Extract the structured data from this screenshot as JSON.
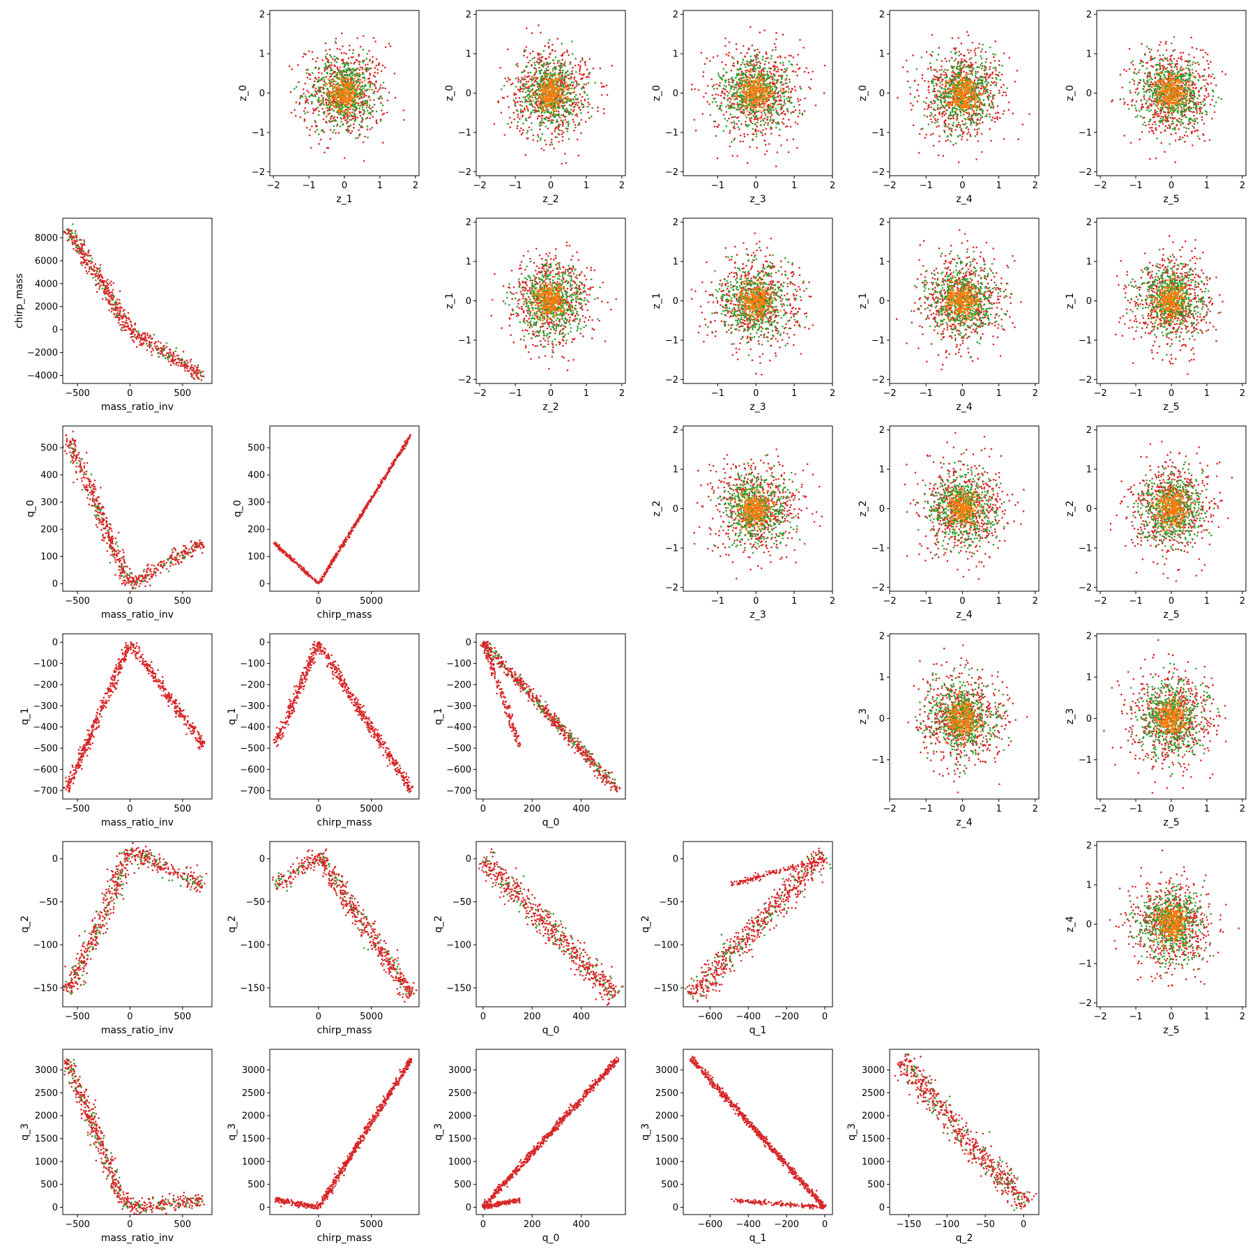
{
  "figure": {
    "colors": {
      "outer": "#d62728",
      "middle": "#2ca02c",
      "inner": "#ff7f0e"
    }
  },
  "chart_data": [
    {
      "type": "scatter",
      "cell": [
        0,
        1
      ],
      "xlabel": "z_1",
      "ylabel": "z_0",
      "xlim": [
        -2.1,
        2.1
      ],
      "ylim": [
        -2.1,
        2.1
      ],
      "xticks": [
        -2,
        -1,
        0,
        1,
        2
      ],
      "yticks": [
        -2,
        -1,
        0,
        1,
        2
      ],
      "kind": "blob",
      "spread": [
        0.9,
        0.9
      ]
    },
    {
      "type": "scatter",
      "cell": [
        0,
        2
      ],
      "xlabel": "z_2",
      "ylabel": "z_0",
      "xlim": [
        -2.1,
        2.1
      ],
      "ylim": [
        -2.1,
        2.1
      ],
      "xticks": [
        -2,
        -1,
        0,
        1,
        2
      ],
      "yticks": [
        -2,
        -1,
        0,
        1,
        2
      ],
      "kind": "blob",
      "spread": [
        0.9,
        0.9
      ]
    },
    {
      "type": "scatter",
      "cell": [
        0,
        3
      ],
      "xlabel": "z_3",
      "ylabel": "z_0",
      "xlim": [
        -1.9,
        2.0
      ],
      "ylim": [
        -2.1,
        2.1
      ],
      "xticks": [
        -1,
        0,
        1,
        2
      ],
      "yticks": [
        -2,
        -1,
        0,
        1,
        2
      ],
      "kind": "blob",
      "spread": [
        0.9,
        0.9
      ]
    },
    {
      "type": "scatter",
      "cell": [
        0,
        4
      ],
      "xlabel": "z_4",
      "ylabel": "z_0",
      "xlim": [
        -2.0,
        2.1
      ],
      "ylim": [
        -2.1,
        2.1
      ],
      "xticks": [
        -2,
        -1,
        0,
        1,
        2
      ],
      "yticks": [
        -2,
        -1,
        0,
        1,
        2
      ],
      "kind": "blob",
      "spread": [
        0.9,
        0.9
      ]
    },
    {
      "type": "scatter",
      "cell": [
        0,
        5
      ],
      "xlabel": "z_5",
      "ylabel": "z_0",
      "xlim": [
        -2.1,
        2.1
      ],
      "ylim": [
        -2.1,
        2.1
      ],
      "xticks": [
        -2,
        -1,
        0,
        1,
        2
      ],
      "yticks": [
        -2,
        -1,
        0,
        1,
        2
      ],
      "kind": "blob",
      "spread": [
        0.9,
        0.9
      ]
    },
    {
      "type": "scatter",
      "cell": [
        1,
        0
      ],
      "xlabel": "mass_ratio_inv",
      "ylabel": "chirp_mass",
      "xlim": [
        -640,
        780
      ],
      "ylim": [
        -4700,
        9700
      ],
      "xticks": [
        -500,
        0,
        500
      ],
      "yticks": [
        -4000,
        -2000,
        0,
        2000,
        4000,
        6000,
        8000
      ],
      "kind": "vee",
      "branches": [
        [
          [
            -600,
            8800
          ],
          [
            -420,
            6200
          ],
          [
            -250,
            3800
          ],
          [
            -120,
            1600
          ],
          [
            0,
            0
          ],
          [
            700,
            -4100
          ]
        ]
      ],
      "thick": [
        0.05,
        0.02
      ]
    },
    {
      "type": "scatter",
      "cell": [
        1,
        2
      ],
      "xlabel": "z_2",
      "ylabel": "z_1",
      "xlim": [
        -2.1,
        2.1
      ],
      "ylim": [
        -2.1,
        2.1
      ],
      "xticks": [
        -2,
        -1,
        0,
        1,
        2
      ],
      "yticks": [
        -2,
        -1,
        0,
        1,
        2
      ],
      "kind": "blob",
      "spread": [
        0.9,
        0.9
      ]
    },
    {
      "type": "scatter",
      "cell": [
        1,
        3
      ],
      "xlabel": "z_3",
      "ylabel": "z_1",
      "xlim": [
        -1.9,
        2.0
      ],
      "ylim": [
        -2.1,
        2.1
      ],
      "xticks": [
        -1,
        0,
        1,
        2
      ],
      "yticks": [
        -2,
        -1,
        0,
        1,
        2
      ],
      "kind": "blob",
      "spread": [
        0.9,
        0.9
      ]
    },
    {
      "type": "scatter",
      "cell": [
        1,
        4
      ],
      "xlabel": "z_4",
      "ylabel": "z_1",
      "xlim": [
        -2.0,
        2.1
      ],
      "ylim": [
        -2.1,
        2.1
      ],
      "xticks": [
        -2,
        -1,
        0,
        1,
        2
      ],
      "yticks": [
        -2,
        -1,
        0,
        1,
        2
      ],
      "kind": "blob",
      "spread": [
        0.9,
        0.9
      ]
    },
    {
      "type": "scatter",
      "cell": [
        1,
        5
      ],
      "xlabel": "z_5",
      "ylabel": "z_1",
      "xlim": [
        -2.1,
        2.1
      ],
      "ylim": [
        -2.1,
        2.1
      ],
      "xticks": [
        -2,
        -1,
        0,
        1,
        2
      ],
      "yticks": [
        -2,
        -1,
        0,
        1,
        2
      ],
      "kind": "blob",
      "spread": [
        0.9,
        0.9
      ]
    },
    {
      "type": "scatter",
      "cell": [
        2,
        0
      ],
      "xlabel": "mass_ratio_inv",
      "ylabel": "q_0",
      "xlim": [
        -640,
        780
      ],
      "ylim": [
        -28,
        580
      ],
      "xticks": [
        -500,
        0,
        500
      ],
      "yticks": [
        0,
        100,
        200,
        300,
        400,
        500
      ],
      "kind": "vee",
      "branches": [
        [
          [
            -600,
            550
          ],
          [
            -300,
            280
          ],
          [
            -150,
            120
          ],
          [
            0,
            0
          ],
          [
            700,
            150
          ]
        ]
      ],
      "thick": [
        0.05,
        0.03
      ]
    },
    {
      "type": "scatter",
      "cell": [
        2,
        1
      ],
      "xlabel": "chirp_mass",
      "ylabel": "q_0",
      "xlim": [
        -4600,
        9500
      ],
      "ylim": [
        -28,
        580
      ],
      "xticks": [
        0,
        5000
      ],
      "yticks": [
        0,
        100,
        200,
        300,
        400,
        500
      ],
      "kind": "vee",
      "branches": [
        [
          [
            -4200,
            150
          ],
          [
            0,
            0
          ],
          [
            8800,
            550
          ]
        ]
      ],
      "thick": [
        0.01,
        0.01
      ]
    },
    {
      "type": "scatter",
      "cell": [
        2,
        3
      ],
      "xlabel": "z_3",
      "ylabel": "z_2",
      "xlim": [
        -1.9,
        2.0
      ],
      "ylim": [
        -2.1,
        2.1
      ],
      "xticks": [
        -1,
        0,
        1,
        2
      ],
      "yticks": [
        -2,
        -1,
        0,
        1,
        2
      ],
      "kind": "blob",
      "spread": [
        0.9,
        0.9
      ]
    },
    {
      "type": "scatter",
      "cell": [
        2,
        4
      ],
      "xlabel": "z_4",
      "ylabel": "z_2",
      "xlim": [
        -2.0,
        2.1
      ],
      "ylim": [
        -2.1,
        2.1
      ],
      "xticks": [
        -2,
        -1,
        0,
        1,
        2
      ],
      "yticks": [
        -2,
        -1,
        0,
        1,
        2
      ],
      "kind": "blob",
      "spread": [
        0.9,
        0.9
      ]
    },
    {
      "type": "scatter",
      "cell": [
        2,
        5
      ],
      "xlabel": "z_5",
      "ylabel": "z_2",
      "xlim": [
        -2.1,
        2.1
      ],
      "ylim": [
        -2.1,
        2.1
      ],
      "xticks": [
        -2,
        -1,
        0,
        1,
        2
      ],
      "yticks": [
        -2,
        -1,
        0,
        1,
        2
      ],
      "kind": "blob",
      "spread": [
        0.9,
        0.9
      ]
    },
    {
      "type": "scatter",
      "cell": [
        3,
        0
      ],
      "xlabel": "mass_ratio_inv",
      "ylabel": "q_1",
      "xlim": [
        -640,
        780
      ],
      "ylim": [
        -740,
        40
      ],
      "xticks": [
        -500,
        0,
        500
      ],
      "yticks": [
        -700,
        -600,
        -500,
        -400,
        -300,
        -200,
        -100,
        0
      ],
      "kind": "vee",
      "branches": [
        [
          [
            -600,
            -700
          ],
          [
            -300,
            -350
          ],
          [
            0,
            0
          ],
          [
            700,
            -490
          ]
        ]
      ],
      "thick": [
        0.03,
        0.02
      ]
    },
    {
      "type": "scatter",
      "cell": [
        3,
        1
      ],
      "xlabel": "chirp_mass",
      "ylabel": "q_1",
      "xlim": [
        -4600,
        9500
      ],
      "ylim": [
        -740,
        40
      ],
      "xticks": [
        0,
        5000
      ],
      "yticks": [
        -700,
        -600,
        -500,
        -400,
        -300,
        -200,
        -100,
        0
      ],
      "kind": "vee",
      "branches": [
        [
          [
            -4100,
            -490
          ],
          [
            0,
            0
          ],
          [
            4000,
            -330
          ],
          [
            8800,
            -700
          ]
        ]
      ],
      "thick": [
        0.03,
        0.02
      ]
    },
    {
      "type": "scatter",
      "cell": [
        3,
        2
      ],
      "xlabel": "q_0",
      "ylabel": "q_1",
      "xlim": [
        -28,
        580
      ],
      "ylim": [
        -740,
        40
      ],
      "xticks": [
        0,
        200,
        400
      ],
      "yticks": [
        -700,
        -600,
        -500,
        -400,
        -300,
        -200,
        -100,
        0
      ],
      "kind": "vee",
      "branches": [
        [
          [
            0,
            0
          ],
          [
            550,
            -700
          ]
        ],
        [
          [
            0,
            0
          ],
          [
            150,
            -490
          ]
        ]
      ],
      "thick": [
        0.035,
        0.02
      ]
    },
    {
      "type": "scatter",
      "cell": [
        3,
        4
      ],
      "xlabel": "z_4",
      "ylabel": "z_3",
      "xlim": [
        -2.0,
        2.1
      ],
      "ylim": [
        -1.95,
        2.05
      ],
      "xticks": [
        -2,
        -1,
        0,
        1,
        2
      ],
      "yticks": [
        -1,
        0,
        1,
        2
      ],
      "kind": "blob",
      "spread": [
        0.9,
        0.9
      ]
    },
    {
      "type": "scatter",
      "cell": [
        3,
        5
      ],
      "xlabel": "z_5",
      "ylabel": "z_3",
      "xlim": [
        -2.1,
        2.1
      ],
      "ylim": [
        -1.95,
        2.05
      ],
      "xticks": [
        -2,
        -1,
        0,
        1,
        2
      ],
      "yticks": [
        -1,
        0,
        1,
        2
      ],
      "kind": "blob",
      "spread": [
        0.9,
        0.9
      ]
    },
    {
      "type": "scatter",
      "cell": [
        4,
        0
      ],
      "xlabel": "mass_ratio_inv",
      "ylabel": "q_2",
      "xlim": [
        -640,
        780
      ],
      "ylim": [
        -172,
        20
      ],
      "xticks": [
        -500,
        0,
        500
      ],
      "yticks": [
        -150,
        -100,
        -50,
        0
      ],
      "kind": "vee",
      "branches": [
        [
          [
            -600,
            -155
          ],
          [
            -300,
            -80
          ],
          [
            0,
            10
          ],
          [
            700,
            -32
          ]
        ]
      ],
      "thick": [
        0.06,
        0.03
      ]
    },
    {
      "type": "scatter",
      "cell": [
        4,
        1
      ],
      "xlabel": "chirp_mass",
      "ylabel": "q_2",
      "xlim": [
        -4600,
        9500
      ],
      "ylim": [
        -172,
        20
      ],
      "xticks": [
        0,
        5000
      ],
      "yticks": [
        -150,
        -100,
        -50,
        0
      ],
      "kind": "vee",
      "branches": [
        [
          [
            -4100,
            -32
          ],
          [
            0,
            5
          ],
          [
            4500,
            -80
          ],
          [
            8800,
            -160
          ]
        ]
      ],
      "thick": [
        0.06,
        0.03
      ]
    },
    {
      "type": "scatter",
      "cell": [
        4,
        2
      ],
      "xlabel": "q_0",
      "ylabel": "q_2",
      "xlim": [
        -28,
        580
      ],
      "ylim": [
        -172,
        20
      ],
      "xticks": [
        0,
        200,
        400
      ],
      "yticks": [
        -150,
        -100,
        -50,
        0
      ],
      "kind": "vee",
      "branches": [
        [
          [
            0,
            0
          ],
          [
            540,
            -160
          ]
        ]
      ],
      "thick": [
        0.08,
        0.08
      ]
    },
    {
      "type": "scatter",
      "cell": [
        4,
        3
      ],
      "xlabel": "q_1",
      "ylabel": "q_2",
      "xlim": [
        -740,
        40
      ],
      "ylim": [
        -172,
        20
      ],
      "xticks": [
        -600,
        -400,
        -200,
        0
      ],
      "yticks": [
        -150,
        -100,
        -50,
        0
      ],
      "kind": "vee",
      "branches": [
        [
          [
            -700,
            -160
          ],
          [
            0,
            5
          ]
        ],
        [
          [
            -490,
            -30
          ],
          [
            0,
            0
          ]
        ]
      ],
      "thick": [
        0.08,
        0.02
      ]
    },
    {
      "type": "scatter",
      "cell": [
        4,
        5
      ],
      "xlabel": "z_5",
      "ylabel": "z_4",
      "xlim": [
        -2.1,
        2.1
      ],
      "ylim": [
        -2.1,
        2.1
      ],
      "xticks": [
        -2,
        -1,
        0,
        1,
        2
      ],
      "yticks": [
        -2,
        -1,
        0,
        1,
        2
      ],
      "kind": "blob",
      "spread": [
        0.9,
        0.9
      ]
    },
    {
      "type": "scatter",
      "cell": [
        5,
        0
      ],
      "xlabel": "mass_ratio_inv",
      "ylabel": "q_3",
      "xlim": [
        -640,
        780
      ],
      "ylim": [
        -160,
        3450
      ],
      "xticks": [
        -500,
        0,
        500
      ],
      "yticks": [
        0,
        500,
        1000,
        1500,
        2000,
        2500,
        3000
      ],
      "kind": "vee",
      "branches": [
        [
          [
            -600,
            3250
          ],
          [
            -300,
            1500
          ],
          [
            -100,
            300
          ],
          [
            0,
            0
          ],
          [
            700,
            160
          ]
        ]
      ],
      "thick": [
        0.05,
        0.02
      ]
    },
    {
      "type": "scatter",
      "cell": [
        5,
        1
      ],
      "xlabel": "chirp_mass",
      "ylabel": "q_3",
      "xlim": [
        -4600,
        9500
      ],
      "ylim": [
        -160,
        3450
      ],
      "xticks": [
        0,
        5000
      ],
      "yticks": [
        0,
        500,
        1000,
        1500,
        2000,
        2500,
        3000
      ],
      "kind": "vee",
      "branches": [
        [
          [
            -4100,
            160
          ],
          [
            0,
            0
          ],
          [
            8800,
            3250
          ]
        ]
      ],
      "thick": [
        0.02,
        0.015
      ]
    },
    {
      "type": "scatter",
      "cell": [
        5,
        2
      ],
      "xlabel": "q_0",
      "ylabel": "q_3",
      "xlim": [
        -28,
        580
      ],
      "ylim": [
        -160,
        3450
      ],
      "xticks": [
        0,
        200,
        400
      ],
      "yticks": [
        0,
        500,
        1000,
        1500,
        2000,
        2500,
        3000
      ],
      "kind": "vee",
      "branches": [
        [
          [
            0,
            0
          ],
          [
            550,
            3250
          ]
        ],
        [
          [
            0,
            0
          ],
          [
            150,
            160
          ]
        ]
      ],
      "thick": [
        0.02,
        0.015
      ]
    },
    {
      "type": "scatter",
      "cell": [
        5,
        3
      ],
      "xlabel": "q_1",
      "ylabel": "q_3",
      "xlim": [
        -740,
        40
      ],
      "ylim": [
        -160,
        3450
      ],
      "xticks": [
        -600,
        -400,
        -200,
        0
      ],
      "yticks": [
        0,
        500,
        1000,
        1500,
        2000,
        2500,
        3000
      ],
      "kind": "vee",
      "branches": [
        [
          [
            -700,
            3250
          ],
          [
            0,
            0
          ]
        ],
        [
          [
            -490,
            160
          ],
          [
            0,
            0
          ]
        ]
      ],
      "thick": [
        0.02,
        0.015
      ]
    },
    {
      "type": "scatter",
      "cell": [
        5,
        4
      ],
      "xlabel": "q_2",
      "ylabel": "q_3",
      "xlim": [
        -175,
        20
      ],
      "ylim": [
        -160,
        3450
      ],
      "xticks": [
        -150,
        -100,
        -50,
        0
      ],
      "yticks": [
        0,
        500,
        1000,
        1500,
        2000,
        2500,
        3000
      ],
      "kind": "vee",
      "branches": [
        [
          [
            -160,
            3250
          ],
          [
            -80,
            1550
          ],
          [
            5,
            50
          ]
        ]
      ],
      "thick": [
        0.08,
        0.08
      ]
    }
  ]
}
